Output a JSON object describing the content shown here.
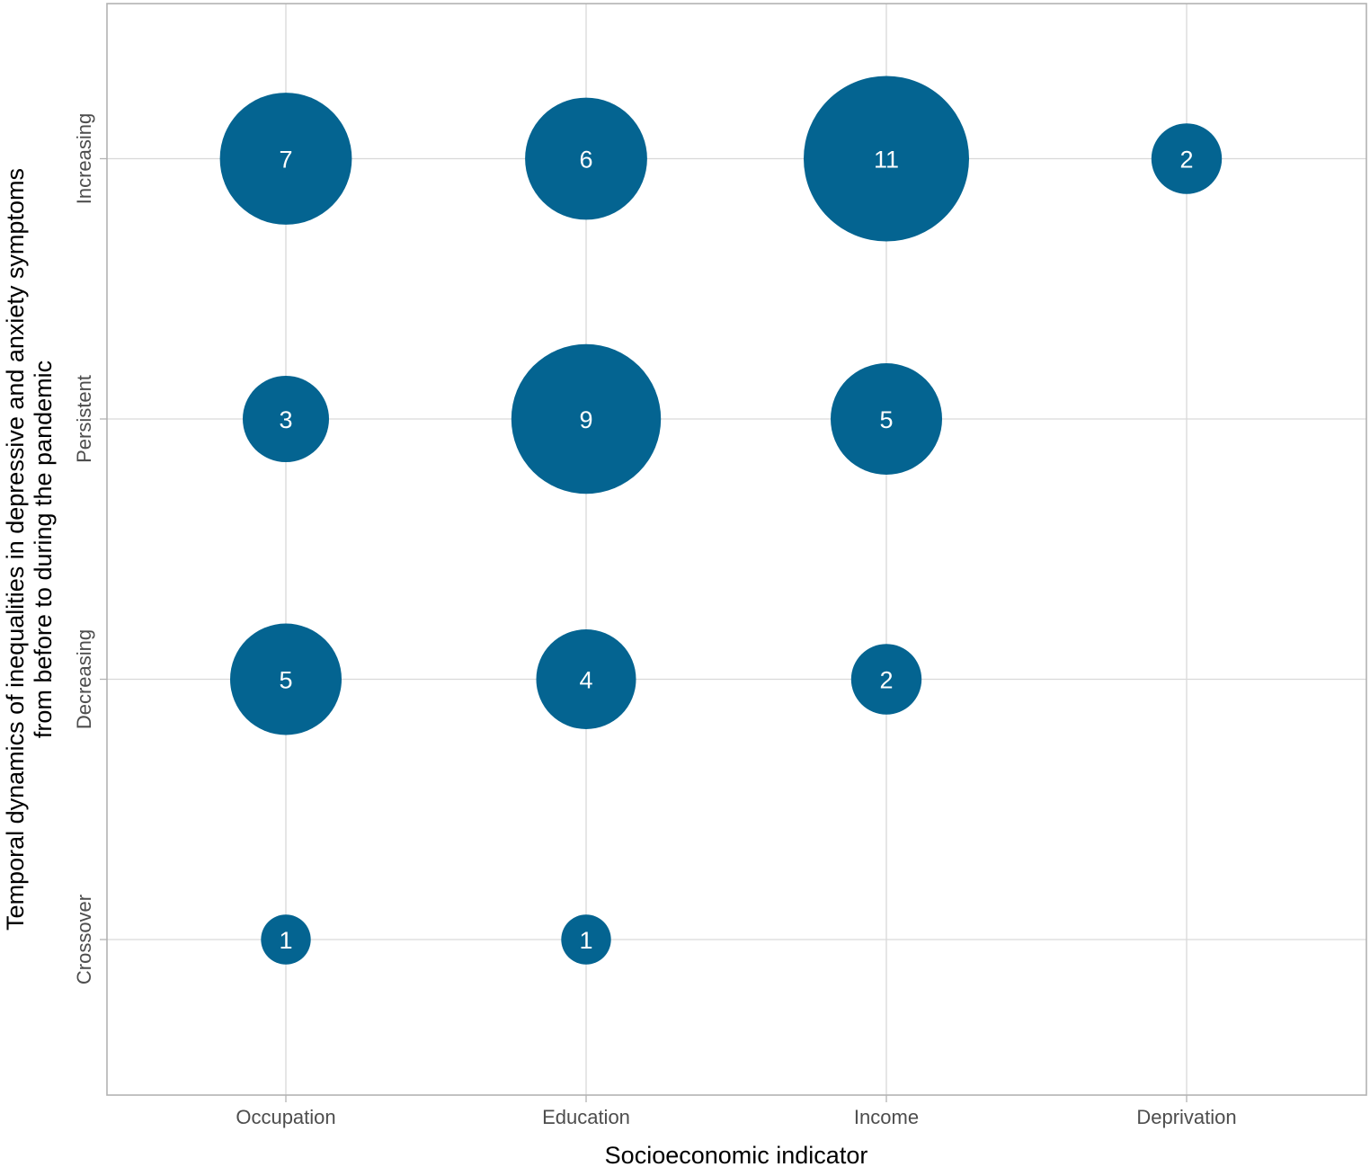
{
  "chart_data": {
    "type": "scatter",
    "subtype": "bubble",
    "title": "",
    "xlabel": "Socioeconomic indicator",
    "ylabel": [
      "Temporal dynamics of inequalities in depressive and anxiety symptoms",
      "from before to during the pandemic"
    ],
    "x_categories": [
      "Occupation",
      "Education",
      "Income",
      "Deprivation"
    ],
    "y_categories": [
      "Crossover",
      "Decreasing",
      "Persistent",
      "Increasing"
    ],
    "grid": true,
    "legend": "none",
    "bubble_color": "#046491",
    "points": [
      {
        "x": "Occupation",
        "y": "Increasing",
        "value": 7
      },
      {
        "x": "Education",
        "y": "Increasing",
        "value": 6
      },
      {
        "x": "Income",
        "y": "Increasing",
        "value": 11
      },
      {
        "x": "Deprivation",
        "y": "Increasing",
        "value": 2
      },
      {
        "x": "Occupation",
        "y": "Persistent",
        "value": 3
      },
      {
        "x": "Education",
        "y": "Persistent",
        "value": 9
      },
      {
        "x": "Income",
        "y": "Persistent",
        "value": 5
      },
      {
        "x": "Occupation",
        "y": "Decreasing",
        "value": 5
      },
      {
        "x": "Education",
        "y": "Decreasing",
        "value": 4
      },
      {
        "x": "Income",
        "y": "Decreasing",
        "value": 2
      },
      {
        "x": "Occupation",
        "y": "Crossover",
        "value": 1
      },
      {
        "x": "Education",
        "y": "Crossover",
        "value": 1
      }
    ]
  }
}
